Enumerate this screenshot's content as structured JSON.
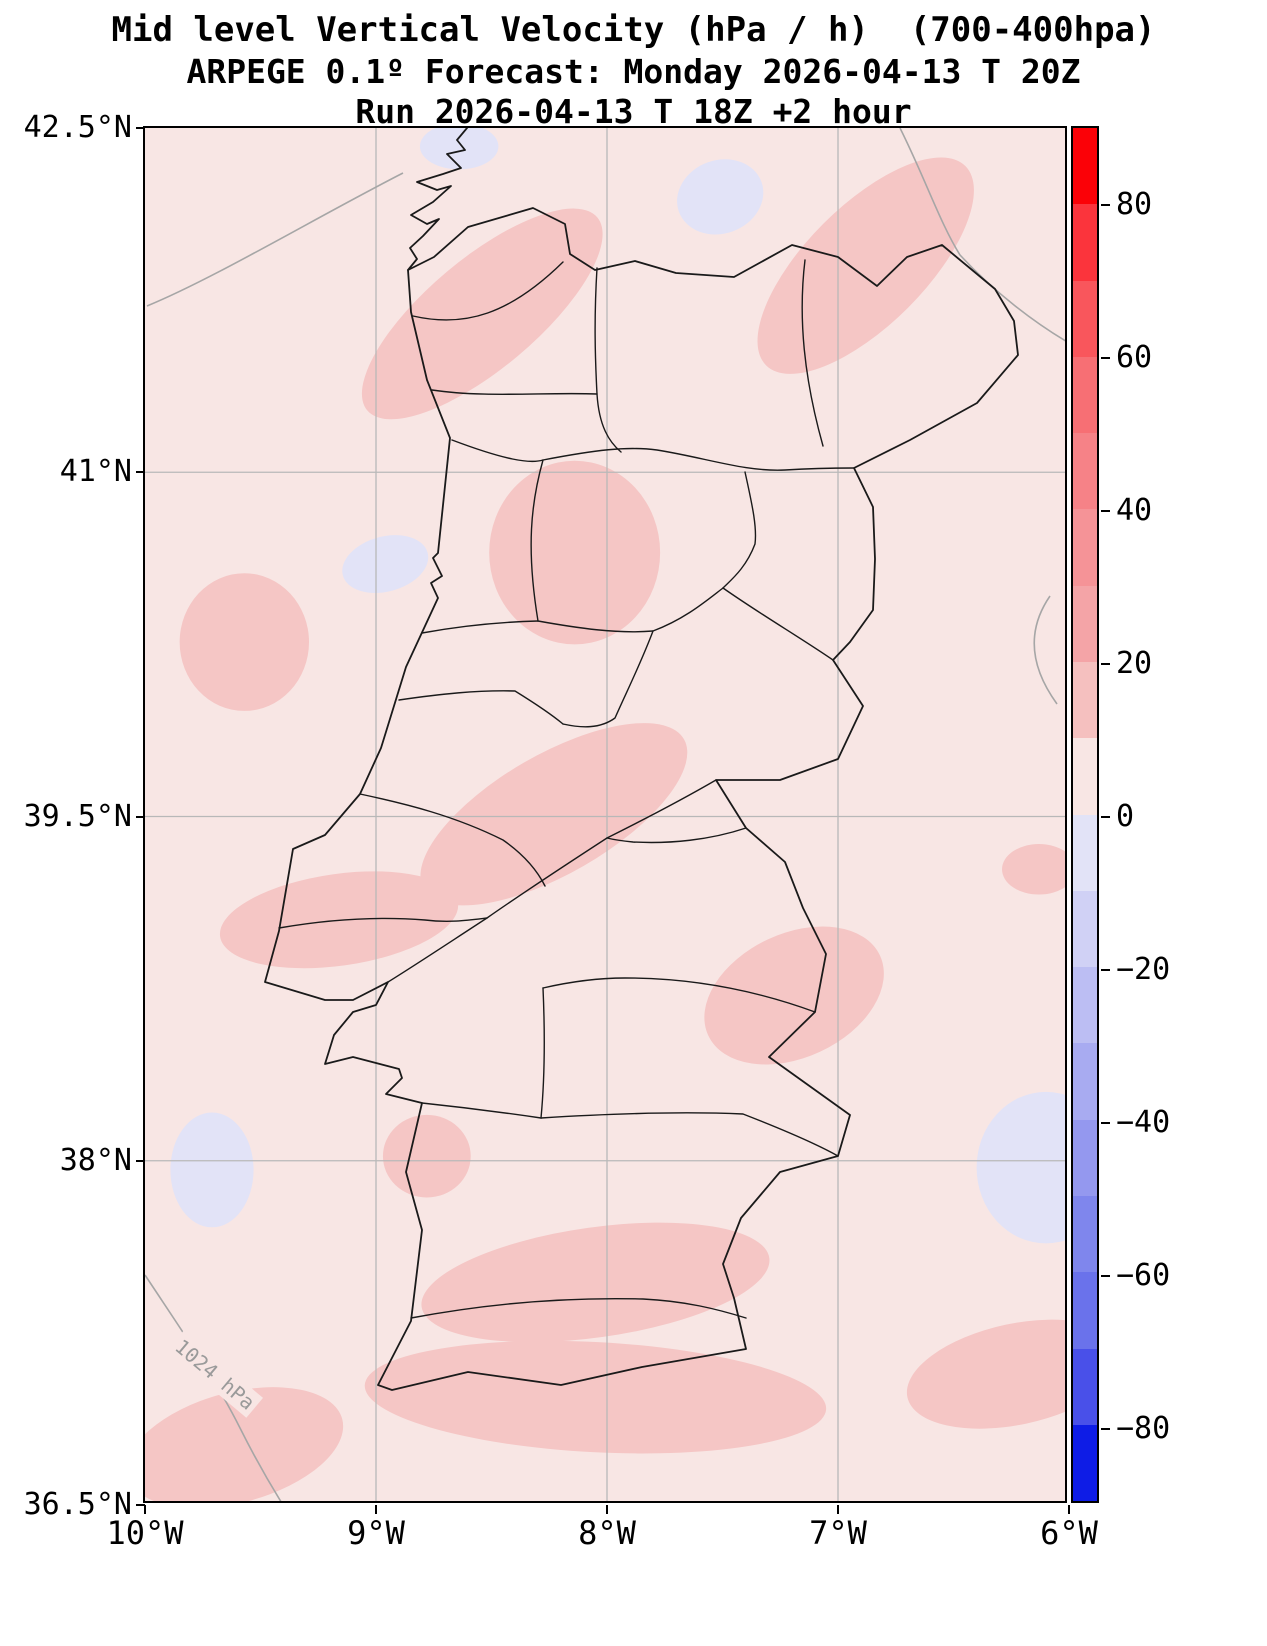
{
  "title": {
    "line1": "Mid level Vertical Velocity (hPa / h)  (700-400hpa)",
    "line2": "ARPEGE 0.1º Forecast: Monday 2026-04-13 T 20Z",
    "line3": "Run 2026-04-13 T 18Z +2 hour"
  },
  "axes": {
    "x_ticks": [
      {
        "label": "10°W",
        "lon": -10
      },
      {
        "label": "9°W",
        "lon": -9
      },
      {
        "label": "8°W",
        "lon": -8
      },
      {
        "label": "7°W",
        "lon": -7
      },
      {
        "label": "6°W",
        "lon": -6
      }
    ],
    "y_ticks": [
      {
        "label": "42.5°N",
        "lat": 42.5
      },
      {
        "label": "41°N",
        "lat": 41
      },
      {
        "label": "39.5°N",
        "lat": 39.5
      },
      {
        "label": "38°N",
        "lat": 38
      },
      {
        "label": "36.5°N",
        "lat": 36.5
      }
    ]
  },
  "colorbar": {
    "min": -90,
    "max": 90,
    "ticks": [
      {
        "label": "80",
        "value": 80
      },
      {
        "label": "60",
        "value": 60
      },
      {
        "label": "40",
        "value": 40
      },
      {
        "label": "20",
        "value": 20
      },
      {
        "label": "0",
        "value": 0
      },
      {
        "label": "−20",
        "value": -20
      },
      {
        "label": "−40",
        "value": -40
      },
      {
        "label": "−60",
        "value": -60
      },
      {
        "label": "−80",
        "value": -80
      }
    ],
    "segments": [
      {
        "from": 80,
        "to": 90,
        "color": "#fb0107"
      },
      {
        "from": 70,
        "to": 80,
        "color": "#fb343c"
      },
      {
        "from": 60,
        "to": 70,
        "color": "#f9565c"
      },
      {
        "from": 50,
        "to": 60,
        "color": "#f76f74"
      },
      {
        "from": 40,
        "to": 50,
        "color": "#f68287"
      },
      {
        "from": 30,
        "to": 40,
        "color": "#f59397"
      },
      {
        "from": 20,
        "to": 30,
        "color": "#f4a4a7"
      },
      {
        "from": 10,
        "to": 20,
        "color": "#f5c0bf"
      },
      {
        "from": 0,
        "to": 10,
        "color": "#f8e6e4"
      },
      {
        "from": -10,
        "to": 0,
        "color": "#e2e3f7"
      },
      {
        "from": -20,
        "to": -10,
        "color": "#d0d1f5"
      },
      {
        "from": -30,
        "to": -20,
        "color": "#bcbef3"
      },
      {
        "from": -40,
        "to": -30,
        "color": "#a8abf1"
      },
      {
        "from": -50,
        "to": -40,
        "color": "#9498ef"
      },
      {
        "from": -60,
        "to": -50,
        "color": "#7f86ed"
      },
      {
        "from": -70,
        "to": -60,
        "color": "#6a72eb"
      },
      {
        "from": -80,
        "to": -70,
        "color": "#4950e9"
      },
      {
        "from": -90,
        "to": -80,
        "color": "#0e1ce6"
      }
    ]
  },
  "map": {
    "isobar_label": "1024 hPa",
    "colors": {
      "background": "#f8e6e4",
      "positive": "#f5c6c5",
      "negative": "#e2e3f7",
      "grid": "#b8b8b8",
      "isobar": "#a6a6a6",
      "coast": "#1a1a1a"
    }
  },
  "chart_data": {
    "type": "heatmap",
    "title": "Mid level Vertical Velocity (hPa / h)  (700-400hpa)",
    "subtitle": "ARPEGE 0.1º Forecast: Monday 2026-04-13 T 20Z",
    "run_info": "Run 2026-04-13 T 18Z +2 hour",
    "variable": "Mid level Vertical Velocity",
    "units": "hPa / h",
    "pressure_layer": "700-400hpa",
    "model": "ARPEGE 0.1º",
    "valid_time": "Monday 2026-04-13 T 20Z",
    "run_time": "2026-04-13 T 18Z",
    "lead_time_hours": 2,
    "region": "Portugal and western Iberia",
    "lon_range": [
      -10,
      -6
    ],
    "lat_range": [
      36.5,
      42.5
    ],
    "grid": true,
    "legend_position": "right-colorbar",
    "colorbar_range": [
      -90,
      90
    ],
    "colorbar_ticks": [
      80,
      60,
      40,
      20,
      0,
      -20,
      -40,
      -60,
      -80
    ],
    "contour_interval": 10,
    "background_value_range": [
      0,
      10
    ],
    "isobar_labels": [
      "1024 hPa"
    ],
    "features": [
      {
        "lon": -8.54,
        "lat": 41.69,
        "rx_deg": 0.65,
        "ry_deg": 0.24,
        "rot": -40,
        "sign": "positive",
        "value_range": [
          10,
          20
        ]
      },
      {
        "lon": -6.88,
        "lat": 41.9,
        "rx_deg": 0.61,
        "ry_deg": 0.26,
        "rot": -45,
        "sign": "positive",
        "value_range": [
          10,
          20
        ]
      },
      {
        "lon": -8.14,
        "lat": 40.65,
        "rx_deg": 0.37,
        "ry_deg": 0.4,
        "rot": 0,
        "sign": "positive",
        "value_range": [
          10,
          20
        ]
      },
      {
        "lon": -9.57,
        "lat": 40.26,
        "rx_deg": 0.28,
        "ry_deg": 0.3,
        "rot": 0,
        "sign": "positive",
        "value_range": [
          10,
          20
        ]
      },
      {
        "lon": -8.23,
        "lat": 39.51,
        "rx_deg": 0.65,
        "ry_deg": 0.26,
        "rot": -30,
        "sign": "positive",
        "value_range": [
          10,
          20
        ]
      },
      {
        "lon": -9.16,
        "lat": 39.05,
        "rx_deg": 0.52,
        "ry_deg": 0.2,
        "rot": -8,
        "sign": "positive",
        "value_range": [
          10,
          20
        ]
      },
      {
        "lon": -7.19,
        "lat": 38.72,
        "rx_deg": 0.41,
        "ry_deg": 0.27,
        "rot": -25,
        "sign": "positive",
        "value_range": [
          10,
          20
        ]
      },
      {
        "lon": -6.13,
        "lat": 39.27,
        "rx_deg": 0.16,
        "ry_deg": 0.11,
        "rot": 0,
        "sign": "positive",
        "value_range": [
          10,
          20
        ]
      },
      {
        "lon": -8.78,
        "lat": 38.02,
        "rx_deg": 0.19,
        "ry_deg": 0.18,
        "rot": 0,
        "sign": "positive",
        "value_range": [
          10,
          20
        ]
      },
      {
        "lon": -8.05,
        "lat": 37.47,
        "rx_deg": 0.76,
        "ry_deg": 0.24,
        "rot": -8,
        "sign": "positive",
        "value_range": [
          10,
          20
        ]
      },
      {
        "lon": -8.05,
        "lat": 36.97,
        "rx_deg": 1.0,
        "ry_deg": 0.24,
        "rot": 3,
        "sign": "positive",
        "value_range": [
          10,
          20
        ]
      },
      {
        "lon": -6.23,
        "lat": 37.07,
        "rx_deg": 0.48,
        "ry_deg": 0.22,
        "rot": -12,
        "sign": "positive",
        "value_range": [
          10,
          20
        ]
      },
      {
        "lon": -9.61,
        "lat": 36.75,
        "rx_deg": 0.48,
        "ry_deg": 0.24,
        "rot": -15,
        "sign": "positive",
        "value_range": [
          10,
          20
        ]
      },
      {
        "lon": -7.51,
        "lat": 42.2,
        "rx_deg": 0.19,
        "ry_deg": 0.16,
        "rot": -20,
        "sign": "negative",
        "value_range": [
          -10,
          0
        ]
      },
      {
        "lon": -8.64,
        "lat": 42.42,
        "rx_deg": 0.17,
        "ry_deg": 0.1,
        "rot": 0,
        "sign": "negative",
        "value_range": [
          -10,
          0
        ]
      },
      {
        "lon": -8.96,
        "lat": 40.6,
        "rx_deg": 0.19,
        "ry_deg": 0.12,
        "rot": -15,
        "sign": "negative",
        "value_range": [
          -10,
          0
        ]
      },
      {
        "lon": -9.71,
        "lat": 37.96,
        "rx_deg": 0.18,
        "ry_deg": 0.25,
        "rot": 0,
        "sign": "negative",
        "value_range": [
          -10,
          0
        ]
      },
      {
        "lon": -6.1,
        "lat": 37.97,
        "rx_deg": 0.3,
        "ry_deg": 0.33,
        "rot": 0,
        "sign": "negative",
        "value_range": [
          -10,
          0
        ]
      }
    ]
  }
}
